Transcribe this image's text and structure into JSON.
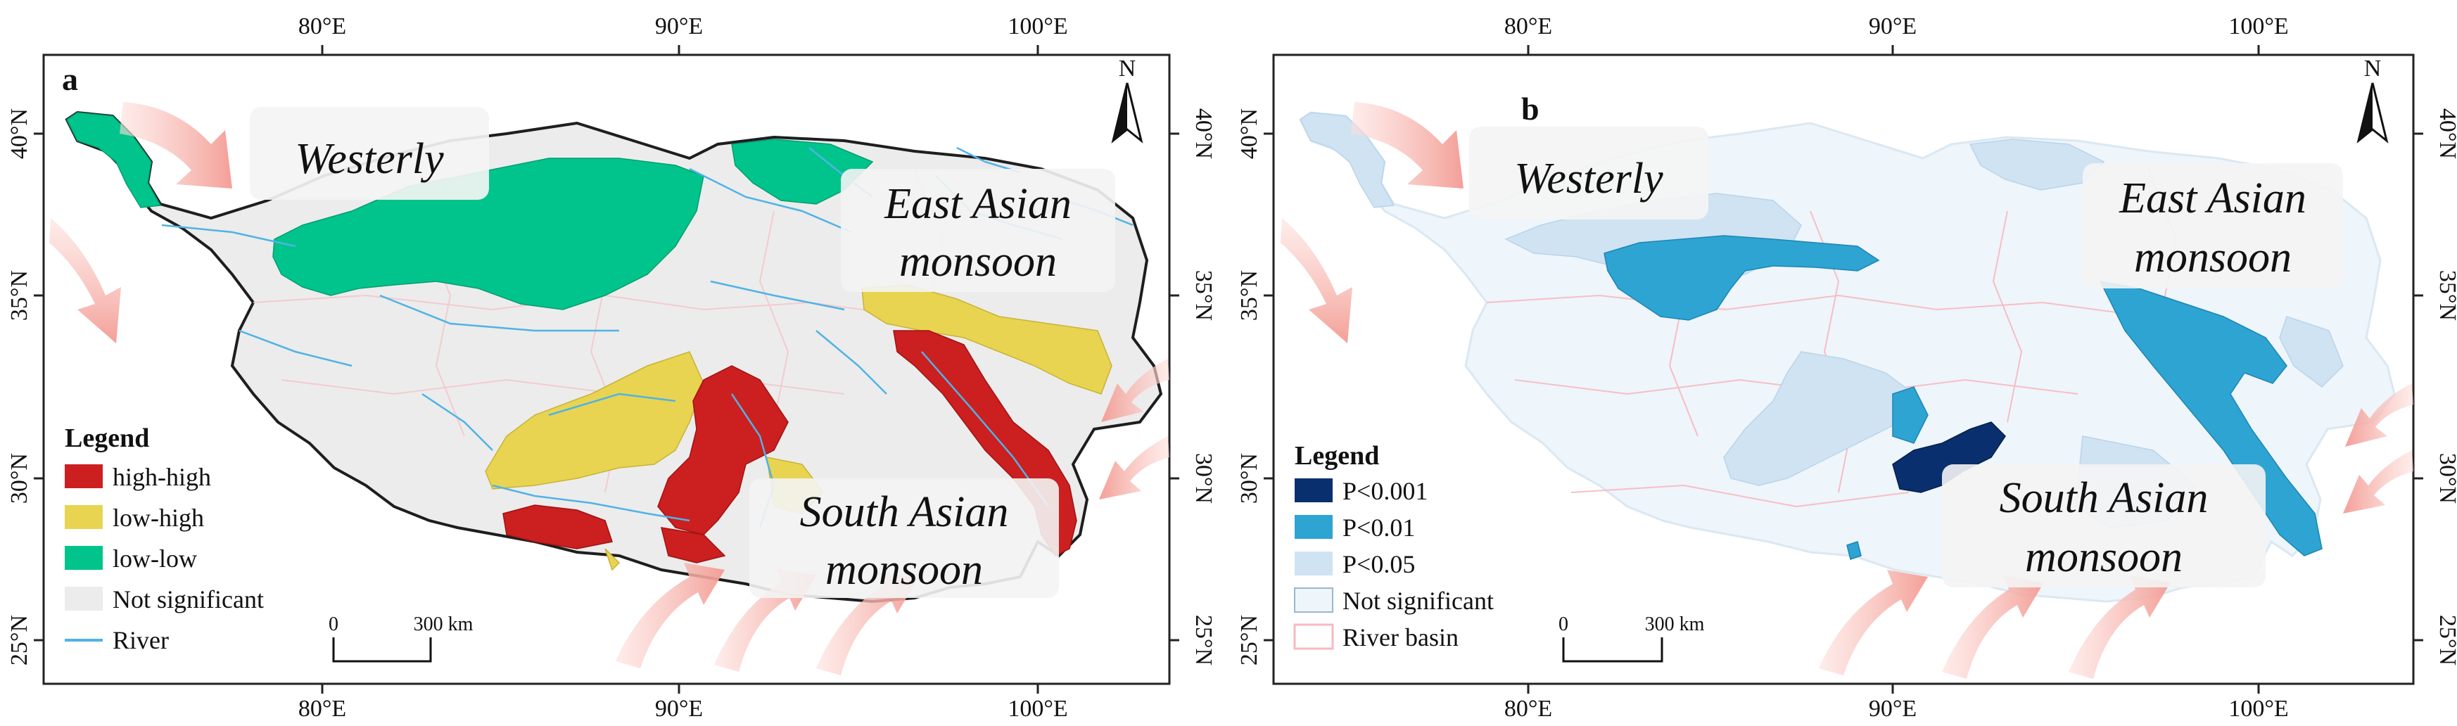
{
  "colors": {
    "high_high": "#cc1f1f",
    "low_high": "#e8d451",
    "low_low": "#00c48c",
    "not_significant_a": "#ececec",
    "river": "#4fb3e6",
    "p001": "#0a2f6e",
    "p01": "#2ea4d3",
    "p05": "#cfe3f3",
    "not_significant_b": "#eef5fb",
    "river_basin": "#f7b9be",
    "wind_arrow": "#f6a7a0"
  },
  "axes": {
    "top_lon": [
      "80°E",
      "90°E",
      "100°E"
    ],
    "bottom_lon": [
      "80°E",
      "90°E",
      "100°E"
    ],
    "lat": [
      "40°N",
      "35°N",
      "30°N",
      "25°N"
    ]
  },
  "panel_a": {
    "letter": "a",
    "north": "N",
    "labels": {
      "westerly": "Westerly",
      "east_asian_1": "East Asian",
      "east_asian_2": "monsoon",
      "south_asian_1": "South Asian",
      "south_asian_2": "monsoon"
    },
    "legend": {
      "title": "Legend",
      "items": [
        {
          "label": "high-high",
          "swatch": "high_high"
        },
        {
          "label": "low-high",
          "swatch": "low_high"
        },
        {
          "label": "low-low",
          "swatch": "low_low"
        },
        {
          "label": "Not significant",
          "swatch": "not_significant_a"
        },
        {
          "label": "River",
          "swatch": "river"
        }
      ]
    },
    "scale": {
      "zero": "0",
      "distance": "300 km"
    }
  },
  "panel_b": {
    "letter": "b",
    "north": "N",
    "labels": {
      "westerly": "Westerly",
      "east_asian_1": "East Asian",
      "east_asian_2": "monsoon",
      "south_asian_1": "South Asian",
      "south_asian_2": "monsoon"
    },
    "legend": {
      "title": "Legend",
      "items": [
        {
          "label": "P<0.001",
          "swatch": "p001"
        },
        {
          "label": "P<0.01",
          "swatch": "p01"
        },
        {
          "label": "P<0.05",
          "swatch": "p05"
        },
        {
          "label": "Not significant",
          "swatch": "not_significant_b"
        },
        {
          "label": "River basin",
          "swatch": "river_basin"
        }
      ]
    },
    "scale": {
      "zero": "0",
      "distance": "300 km"
    }
  }
}
